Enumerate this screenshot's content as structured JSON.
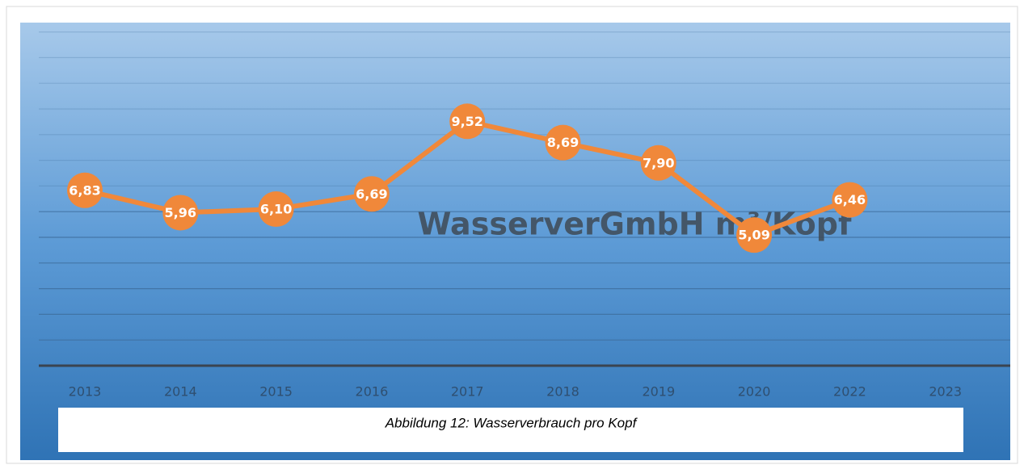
{
  "chart_data": {
    "type": "line",
    "title": "WasserverGmbH   m³/Kopf",
    "caption": "Abbildung 12: Wasserverbrauch pro Kopf",
    "categories": [
      "2013",
      "2014",
      "2015",
      "2016",
      "2017",
      "2018",
      "2019",
      "2020",
      "2022",
      "2023"
    ],
    "series": [
      {
        "color": "#f0883a",
        "values": [
          6.83,
          5.96,
          6.1,
          6.69,
          9.52,
          8.69,
          7.9,
          5.09,
          6.46,
          null
        ],
        "value_labels": [
          "6,83",
          "5,96",
          "6,10",
          "6,69",
          "9,52",
          "8,69",
          "7,90",
          "5,09",
          "6,46",
          null
        ]
      }
    ],
    "ylim": [
      0,
      13
    ],
    "yticks": [
      0,
      1,
      2,
      3,
      4,
      5,
      6,
      7,
      8,
      9,
      10,
      11,
      12,
      13
    ],
    "grid": true
  }
}
